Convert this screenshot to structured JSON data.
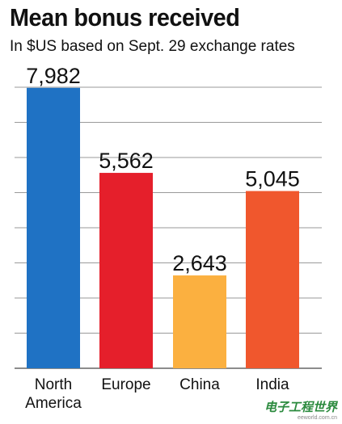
{
  "chart_data": {
    "type": "bar",
    "title": "Mean bonus received",
    "subtitle": "In $US based on Sept. 29 exchange rates",
    "categories": [
      "North America",
      "Europe",
      "China",
      "India"
    ],
    "category_lines": [
      [
        "North",
        "America"
      ],
      [
        "Europe"
      ],
      [
        "China"
      ],
      [
        "India"
      ]
    ],
    "values": [
      7982,
      5562,
      2643,
      5045
    ],
    "value_labels": [
      "7,982",
      "5,562",
      "2,643",
      "5,045"
    ],
    "colors": [
      "#1f72c4",
      "#e51f2b",
      "#fbb040",
      "#f0572d"
    ],
    "ylim": [
      0,
      8000
    ],
    "grid": true,
    "gridline_count": 8
  },
  "watermark": {
    "text": "电子工程世界",
    "site": "eeworld.com.cn"
  }
}
